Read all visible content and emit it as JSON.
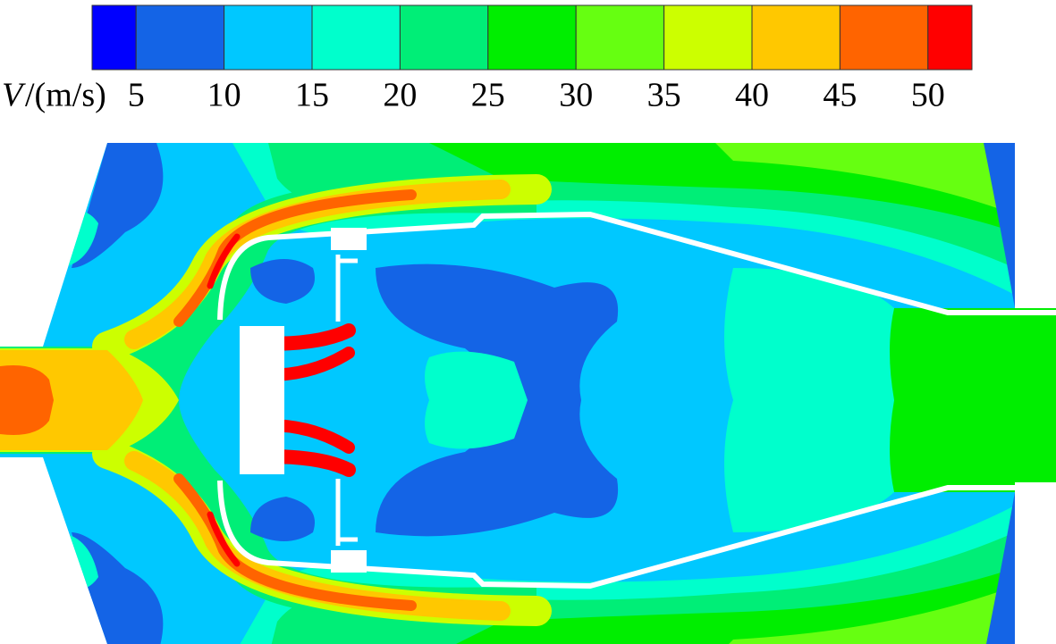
{
  "chart_data": {
    "type": "contour",
    "variable": "V",
    "unit": "/(m/s)",
    "clim": [
      2.5,
      52.5
    ],
    "levels": [
      5,
      10,
      15,
      20,
      25,
      30,
      35,
      40,
      45,
      50
    ],
    "colors": [
      "#0000ff",
      "#1464e6",
      "#00c8ff",
      "#00ffcc",
      "#00ee77",
      "#00ee00",
      "#66ff11",
      "#ccff00",
      "#ffc800",
      "#ff6400",
      "#ff0000"
    ]
  }
}
